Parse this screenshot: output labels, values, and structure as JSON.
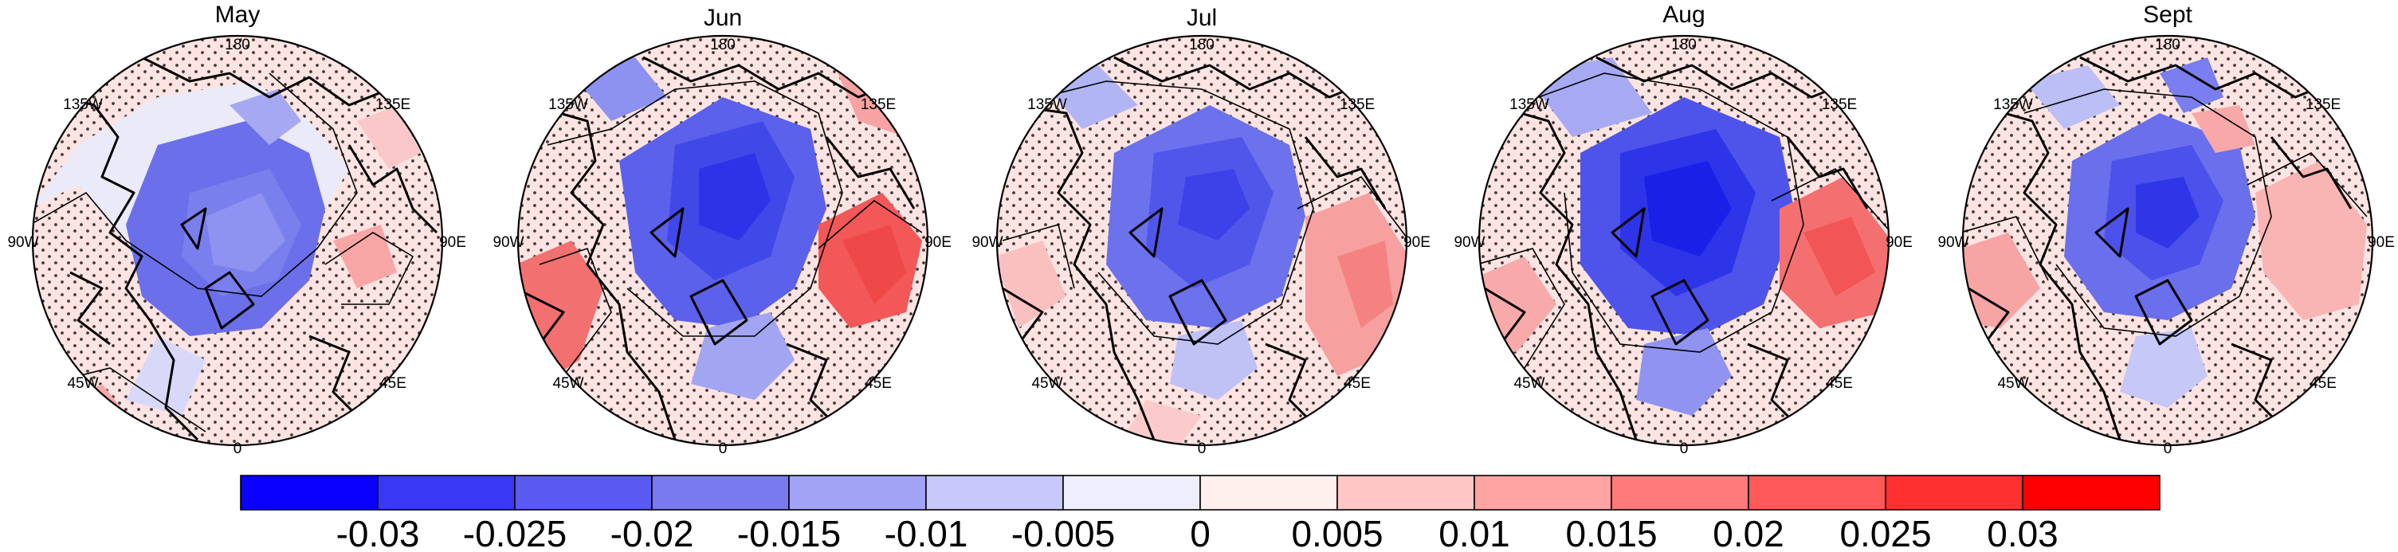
{
  "panels": [
    {
      "title": "May",
      "lon_labels": {
        "top": "180",
        "top_left": "135W",
        "top_right": "135E",
        "left": "90W",
        "right": "90E",
        "bottom_left": "45W",
        "bottom_right": "45E",
        "bottom": "0"
      }
    },
    {
      "title": "Jun",
      "lon_labels": {
        "top": "180",
        "top_left": "135W",
        "top_right": "135E",
        "left": "90W",
        "right": "90E",
        "bottom_left": "45W",
        "bottom_right": "45E",
        "bottom": "0"
      }
    },
    {
      "title": "Jul",
      "lon_labels": {
        "top": "180",
        "top_left": "135W",
        "top_right": "135E",
        "left": "90W",
        "right": "90E",
        "bottom_left": "45W",
        "bottom_right": "45E",
        "bottom": "0"
      }
    },
    {
      "title": "Aug",
      "lon_labels": {
        "top": "180",
        "top_left": "135W",
        "top_right": "135E",
        "left": "90W",
        "right": "90E",
        "bottom_left": "45W",
        "bottom_right": "45E",
        "bottom": "0"
      }
    },
    {
      "title": "Sept",
      "lon_labels": {
        "top": "180",
        "top_left": "135W",
        "top_right": "135E",
        "left": "90W",
        "right": "90E",
        "bottom_left": "45W",
        "bottom_right": "45E",
        "bottom": "0"
      }
    }
  ],
  "colorbar": {
    "tick_labels": [
      "-0.03",
      "-0.025",
      "-0.02",
      "-0.015",
      "-0.01",
      "-0.005",
      "0",
      "0.005",
      "0.01",
      "0.015",
      "0.02",
      "0.025",
      "0.03"
    ],
    "colors": [
      "#0a00ff",
      "#3838f5",
      "#5a5af2",
      "#7a7af0",
      "#a3a3f5",
      "#c8c8fa",
      "#eeeefc",
      "#fff0ee",
      "#ffc6c6",
      "#ffa3a3",
      "#ff7a7a",
      "#ff5a5a",
      "#ff3030",
      "#ff0000"
    ]
  },
  "palette": {
    "blue_deep": "#2a2ef0",
    "blue_mid": "#5c62ee",
    "blue_light": "#9ca0f2",
    "blue_pale": "#dcdcf8",
    "red_deep": "#f25050",
    "red_mid": "#f58a8a",
    "red_light": "#fac3c3",
    "red_pale": "#fde4e2"
  }
}
